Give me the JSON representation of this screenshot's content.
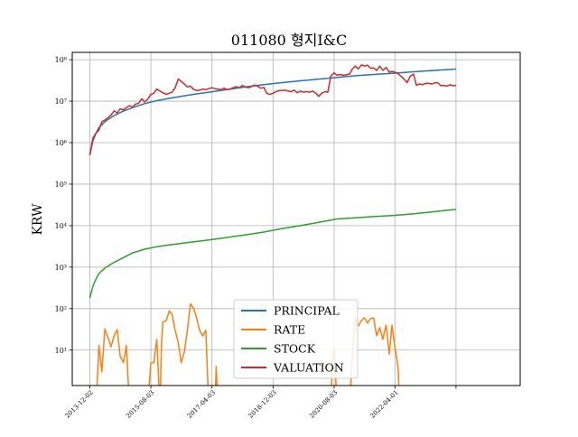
{
  "chart_data": {
    "type": "line",
    "title": "011080 형지I&C",
    "ylabel": "KRW",
    "xlabel": "",
    "yscale": "log",
    "ylim": [
      1.4,
      150000000
    ],
    "xlim": [
      "2013-06-10",
      "2025-09-01"
    ],
    "grid": true,
    "legend_position": "lower-center",
    "x_ticks": [
      "2013-12-02",
      "2015-08-03",
      "2017-04-03",
      "2018-12-03",
      "2020-08-03",
      "2022-04-01",
      ""
    ],
    "x_tick_dates": [
      "2013-12-02",
      "2015-08-03",
      "2017-04-03",
      "2018-12-03",
      "2020-08-03",
      "2022-04-01",
      "2023-12-01"
    ],
    "y_ticks": [
      {
        "value": 10,
        "label": "10¹"
      },
      {
        "value": 100,
        "label": "10²"
      },
      {
        "value": 1000,
        "label": "10³"
      },
      {
        "value": 10000,
        "label": "10⁴"
      },
      {
        "value": 100000,
        "label": "10⁵"
      },
      {
        "value": 1000000,
        "label": "10⁶"
      },
      {
        "value": 10000000,
        "label": "10⁷"
      },
      {
        "value": 100000000,
        "label": "10⁸"
      }
    ],
    "series": [
      {
        "name": "PRINCIPAL",
        "color": "#1f77b4",
        "points": [
          [
            "2013-12-02",
            500000
          ],
          [
            "2014-01-02",
            1100000
          ],
          [
            "2014-02-03",
            1700000
          ],
          [
            "2014-03-03",
            2300000
          ],
          [
            "2014-05-01",
            3200000
          ],
          [
            "2014-08-01",
            4500000
          ],
          [
            "2014-11-03",
            5800000
          ],
          [
            "2015-02-02",
            7000000
          ],
          [
            "2015-06-01",
            8700000
          ],
          [
            "2015-10-01",
            10300000
          ],
          [
            "2016-03-02",
            12000000
          ],
          [
            "2016-09-01",
            14200000
          ],
          [
            "2017-03-02",
            16500000
          ],
          [
            "2017-09-01",
            19000000
          ],
          [
            "2018-03-02",
            22000000
          ],
          [
            "2018-09-03",
            25000000
          ],
          [
            "2019-03-04",
            28000000
          ],
          [
            "2019-09-02",
            31000000
          ],
          [
            "2020-03-02",
            34000000
          ],
          [
            "2020-09-01",
            37500000
          ],
          [
            "2021-03-02",
            41000000
          ],
          [
            "2021-09-01",
            44000000
          ],
          [
            "2022-03-02",
            47000000
          ],
          [
            "2022-09-01",
            50500000
          ],
          [
            "2023-03-02",
            54000000
          ],
          [
            "2023-09-01",
            57500000
          ],
          [
            "2023-12-01",
            59500000
          ]
        ]
      },
      {
        "name": "RATE",
        "color": "#ff7f0e",
        "points": [
          [
            "2013-12-02",
            null
          ],
          [
            "2014-02-03",
            0.3
          ],
          [
            "2014-03-03",
            13
          ],
          [
            "2014-04-01",
            3
          ],
          [
            "2014-05-01",
            32
          ],
          [
            "2014-06-02",
            20
          ],
          [
            "2014-07-01",
            12
          ],
          [
            "2014-08-01",
            22
          ],
          [
            "2014-09-01",
            31
          ],
          [
            "2014-10-01",
            7
          ],
          [
            "2014-11-03",
            5
          ],
          [
            "2014-12-01",
            13
          ],
          [
            "2015-01-02",
            0.3
          ],
          [
            "2015-02-02",
            null
          ],
          [
            "2015-06-01",
            null
          ],
          [
            "2015-07-01",
            0.3
          ],
          [
            "2015-08-03",
            5
          ],
          [
            "2015-09-01",
            5
          ],
          [
            "2015-10-01",
            18
          ],
          [
            "2015-11-02",
            0.3
          ],
          [
            "2015-11-16",
            12
          ],
          [
            "2015-12-01",
            48
          ],
          [
            "2016-01-04",
            52
          ],
          [
            "2016-02-01",
            88
          ],
          [
            "2016-03-02",
            72
          ],
          [
            "2016-04-01",
            30
          ],
          [
            "2016-05-02",
            15
          ],
          [
            "2016-06-01",
            5
          ],
          [
            "2016-07-01",
            9
          ],
          [
            "2016-08-01",
            30
          ],
          [
            "2016-09-01",
            130
          ],
          [
            "2016-10-04",
            100
          ],
          [
            "2016-11-01",
            60
          ],
          [
            "2016-12-01",
            30
          ],
          [
            "2017-01-02",
            22
          ],
          [
            "2017-02-01",
            30
          ],
          [
            "2017-03-02",
            0.3
          ],
          [
            "2017-04-03",
            null
          ],
          [
            "2017-05-02",
            0.3
          ],
          [
            "2017-05-15",
            4
          ],
          [
            "2017-06-01",
            0.3
          ],
          [
            "2017-07-03",
            null
          ],
          [
            "2020-06-01",
            null
          ],
          [
            "2020-07-01",
            0.3
          ],
          [
            "2020-07-15",
            6
          ],
          [
            "2020-08-03",
            12
          ],
          [
            "2020-09-01",
            0.3
          ],
          [
            "2020-10-05",
            null
          ],
          [
            "2020-12-01",
            null
          ],
          [
            "2021-01-04",
            0.3
          ],
          [
            "2021-02-01",
            8
          ],
          [
            "2021-03-02",
            60
          ],
          [
            "2021-04-01",
            38
          ],
          [
            "2021-05-03",
            52
          ],
          [
            "2021-06-01",
            60
          ],
          [
            "2021-07-01",
            45
          ],
          [
            "2021-08-02",
            58
          ],
          [
            "2021-09-01",
            60
          ],
          [
            "2021-10-01",
            22
          ],
          [
            "2021-11-01",
            35
          ],
          [
            "2021-12-01",
            18
          ],
          [
            "2022-01-03",
            40
          ],
          [
            "2022-02-03",
            8
          ],
          [
            "2022-03-02",
            40
          ],
          [
            "2022-04-01",
            12
          ],
          [
            "2022-05-02",
            4
          ],
          [
            "2022-05-20",
            0.3
          ],
          [
            "2022-06-01",
            null
          ]
        ]
      },
      {
        "name": "STOCK",
        "color": "#2ca02c",
        "points": [
          [
            "2013-12-02",
            180
          ],
          [
            "2014-01-02",
            350
          ],
          [
            "2014-02-03",
            520
          ],
          [
            "2014-03-03",
            700
          ],
          [
            "2014-05-01",
            950
          ],
          [
            "2014-08-01",
            1300
          ],
          [
            "2014-11-03",
            1700
          ],
          [
            "2015-02-02",
            2200
          ],
          [
            "2015-06-01",
            2700
          ],
          [
            "2015-10-01",
            3100
          ],
          [
            "2016-03-02",
            3500
          ],
          [
            "2016-09-01",
            4000
          ],
          [
            "2017-03-02",
            4500
          ],
          [
            "2017-09-01",
            5200
          ],
          [
            "2018-03-02",
            6000
          ],
          [
            "2018-09-03",
            7000
          ],
          [
            "2019-03-04",
            8500
          ],
          [
            "2019-09-02",
            10000
          ],
          [
            "2020-03-02",
            12000
          ],
          [
            "2020-09-01",
            14500
          ],
          [
            "2021-03-02",
            15500
          ],
          [
            "2021-09-01",
            16500
          ],
          [
            "2022-03-02",
            17500
          ],
          [
            "2022-09-01",
            19000
          ],
          [
            "2023-03-02",
            21000
          ],
          [
            "2023-09-01",
            23500
          ],
          [
            "2023-12-01",
            24500
          ]
        ]
      },
      {
        "name": "VALUATION",
        "color": "#d62728",
        "points": [
          [
            "2013-12-02",
            500000
          ],
          [
            "2014-01-02",
            1300000
          ],
          [
            "2014-02-03",
            1700000
          ],
          [
            "2014-03-03",
            2000000
          ],
          [
            "2014-04-01",
            3200000
          ],
          [
            "2014-05-01",
            3500000
          ],
          [
            "2014-06-02",
            4000000
          ],
          [
            "2014-07-01",
            4600000
          ],
          [
            "2014-08-01",
            5800000
          ],
          [
            "2014-09-01",
            5200000
          ],
          [
            "2014-10-01",
            6500000
          ],
          [
            "2014-11-03",
            6200000
          ],
          [
            "2014-12-01",
            7000000
          ],
          [
            "2015-01-02",
            7800000
          ],
          [
            "2015-02-02",
            7200000
          ],
          [
            "2015-03-02",
            8500000
          ],
          [
            "2015-04-01",
            8800000
          ],
          [
            "2015-05-04",
            11500000
          ],
          [
            "2015-06-01",
            9500000
          ],
          [
            "2015-07-01",
            11000000
          ],
          [
            "2015-08-03",
            14500000
          ],
          [
            "2015-09-01",
            15500000
          ],
          [
            "2015-10-01",
            19500000
          ],
          [
            "2015-11-02",
            17500000
          ],
          [
            "2015-12-01",
            16000000
          ],
          [
            "2016-01-04",
            14500000
          ],
          [
            "2016-02-01",
            15500000
          ],
          [
            "2016-03-02",
            16500000
          ],
          [
            "2016-04-01",
            21000000
          ],
          [
            "2016-05-02",
            34000000
          ],
          [
            "2016-06-01",
            30000000
          ],
          [
            "2016-07-01",
            26000000
          ],
          [
            "2016-08-01",
            22000000
          ],
          [
            "2016-09-01",
            23000000
          ],
          [
            "2016-10-04",
            19000000
          ],
          [
            "2016-11-01",
            18000000
          ],
          [
            "2016-12-01",
            18500000
          ],
          [
            "2017-01-02",
            19500000
          ],
          [
            "2017-02-01",
            19000000
          ],
          [
            "2017-03-02",
            20000000
          ],
          [
            "2017-04-03",
            21000000
          ],
          [
            "2017-05-02",
            20000000
          ],
          [
            "2017-06-01",
            19500000
          ],
          [
            "2017-07-03",
            19000000
          ],
          [
            "2017-08-01",
            20500000
          ],
          [
            "2017-09-01",
            19000000
          ],
          [
            "2017-10-10",
            20000000
          ],
          [
            "2017-11-01",
            21000000
          ],
          [
            "2017-12-01",
            22500000
          ],
          [
            "2018-01-02",
            21000000
          ],
          [
            "2018-02-01",
            24000000
          ],
          [
            "2018-03-02",
            22000000
          ],
          [
            "2018-04-02",
            21000000
          ],
          [
            "2018-05-02",
            22500000
          ],
          [
            "2018-06-01",
            24500000
          ],
          [
            "2018-07-02",
            23000000
          ],
          [
            "2018-08-01",
            20500000
          ],
          [
            "2018-09-03",
            21500000
          ],
          [
            "2018-10-01",
            15500000
          ],
          [
            "2018-11-01",
            14500000
          ],
          [
            "2018-12-03",
            15500000
          ],
          [
            "2019-01-02",
            17000000
          ],
          [
            "2019-02-01",
            18000000
          ],
          [
            "2019-03-04",
            18000000
          ],
          [
            "2019-04-01",
            18500000
          ],
          [
            "2019-05-02",
            17500000
          ],
          [
            "2019-06-03",
            17000000
          ],
          [
            "2019-07-01",
            18500000
          ],
          [
            "2019-08-01",
            16000000
          ],
          [
            "2019-09-02",
            17500000
          ],
          [
            "2019-10-01",
            16500000
          ],
          [
            "2019-11-01",
            17000000
          ],
          [
            "2019-12-02",
            16500000
          ],
          [
            "2020-01-02",
            17500000
          ],
          [
            "2020-02-03",
            15500000
          ],
          [
            "2020-03-02",
            13000000
          ],
          [
            "2020-04-01",
            15500000
          ],
          [
            "2020-05-04",
            17000000
          ],
          [
            "2020-06-01",
            16500000
          ],
          [
            "2020-07-01",
            40000000
          ],
          [
            "2020-08-03",
            48000000
          ],
          [
            "2020-09-01",
            42000000
          ],
          [
            "2020-10-05",
            44000000
          ],
          [
            "2020-11-02",
            42000000
          ],
          [
            "2020-12-01",
            43000000
          ],
          [
            "2021-01-04",
            45000000
          ],
          [
            "2021-02-01",
            60000000
          ],
          [
            "2021-03-02",
            70000000
          ],
          [
            "2021-04-01",
            60000000
          ],
          [
            "2021-05-03",
            75000000
          ],
          [
            "2021-06-01",
            70000000
          ],
          [
            "2021-07-01",
            74000000
          ],
          [
            "2021-08-02",
            62000000
          ],
          [
            "2021-09-01",
            63000000
          ],
          [
            "2021-10-01",
            55000000
          ],
          [
            "2021-11-01",
            70000000
          ],
          [
            "2021-12-01",
            55000000
          ],
          [
            "2022-01-03",
            65000000
          ],
          [
            "2022-02-03",
            50000000
          ],
          [
            "2022-03-02",
            52000000
          ],
          [
            "2022-04-01",
            50000000
          ],
          [
            "2022-05-02",
            46000000
          ],
          [
            "2022-06-01",
            40000000
          ],
          [
            "2022-07-01",
            34000000
          ],
          [
            "2022-08-01",
            28000000
          ],
          [
            "2022-09-01",
            40000000
          ],
          [
            "2022-10-04",
            45000000
          ],
          [
            "2022-11-01",
            24000000
          ],
          [
            "2022-12-01",
            26000000
          ],
          [
            "2023-01-02",
            25000000
          ],
          [
            "2023-02-01",
            27000000
          ],
          [
            "2023-03-02",
            27000000
          ],
          [
            "2023-04-03",
            26000000
          ],
          [
            "2023-05-02",
            27500000
          ],
          [
            "2023-06-01",
            28000000
          ],
          [
            "2023-07-03",
            23500000
          ],
          [
            "2023-08-01",
            24000000
          ],
          [
            "2023-09-01",
            23000000
          ],
          [
            "2023-10-04",
            25000000
          ],
          [
            "2023-11-01",
            23500000
          ],
          [
            "2023-12-01",
            24000000
          ]
        ]
      }
    ]
  }
}
